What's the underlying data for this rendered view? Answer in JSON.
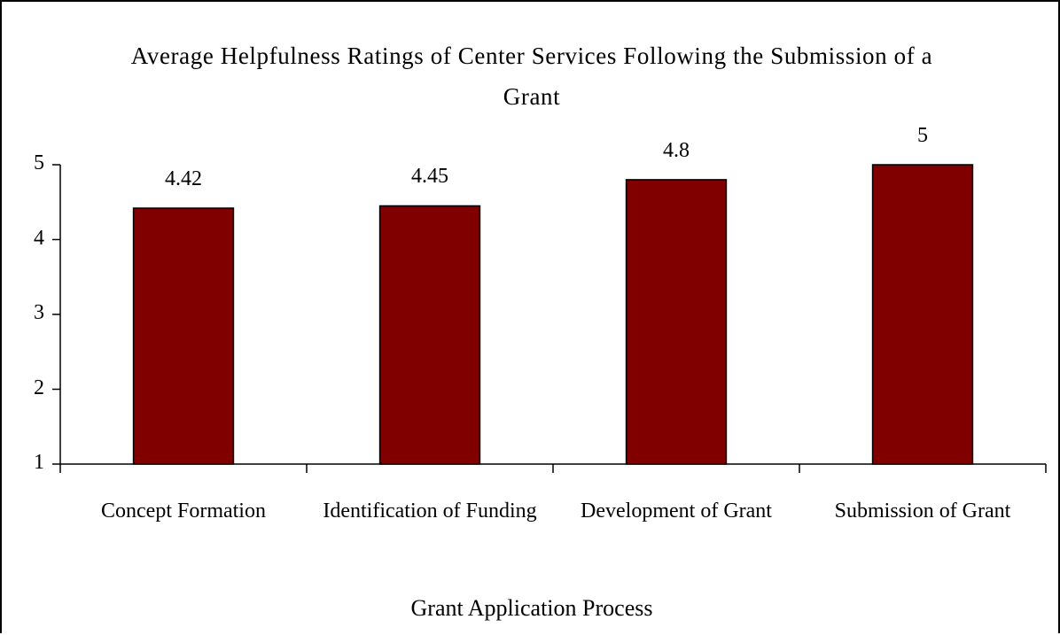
{
  "chart_data": {
    "type": "bar",
    "title": "Average Helpfulness Ratings of Center Services Following the Submission of a Grant",
    "x_label": "Grant Application Process",
    "categories": [
      "Concept Formation",
      "Identification of Funding",
      "Development of Grant",
      "Submission of Grant"
    ],
    "values": [
      4.42,
      4.45,
      4.8,
      5
    ],
    "color": "#800000",
    "ylim": [
      1,
      5
    ],
    "yticks": [
      1,
      2,
      3,
      4,
      5
    ],
    "grid": false
  }
}
